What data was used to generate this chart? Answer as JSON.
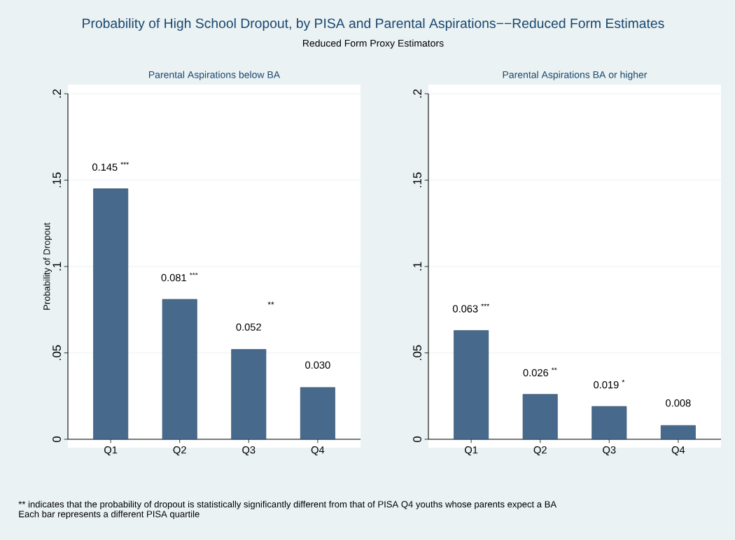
{
  "chart_data": [
    {
      "type": "other",
      "title": "Probability of High School Dropout, by PISA and Parental Aspirations−−Reduced Form Estimates",
      "subtitle": "Reduced Form Proxy Estimators",
      "annotations": [
        "** indicates that the probability of dropout is statistically significantly different from that of PISA Q4 youths whose parents expect a BA",
        "Each bar represents a different PISA quartile"
      ]
    },
    {
      "type": "bar",
      "title": "Parental Aspirations below BA",
      "ylabel": "Probability of Dropout",
      "categories": [
        "Q1",
        "Q2",
        "Q3",
        "Q4"
      ],
      "values": [
        0.145,
        0.081,
        0.052,
        0.03
      ],
      "value_labels": [
        "0.145 $^{***}$",
        "0.081 $^{***}$",
        "0.052",
        "0.030"
      ],
      "color": "#476a8c",
      "ylim": [
        0,
        0.2
      ],
      "yticks": [
        0,
        {
          "value": 0.05,
          "label": ".05"
        },
        {
          "value": 0.1,
          "label": ".1"
        },
        {
          "value": 0.15,
          "label": ".15"
        },
        {
          "value": 0.2,
          "label": ".2"
        }
      ],
      "grid": "y",
      "annotations": [
        "**"
      ]
    },
    {
      "type": "bar",
      "title": "Parental Aspirations BA or higher",
      "categories": [
        "Q1",
        "Q2",
        "Q3",
        "Q4"
      ],
      "values": [
        0.063,
        0.026,
        0.019,
        0.008
      ],
      "value_labels": [
        "0.063 $^{***}$",
        "0.026 $^{**}$",
        "0.019 $^{*}$",
        "0.008"
      ],
      "color": "#476a8c",
      "ylim": [
        0,
        0.2
      ],
      "yticks": [
        0,
        {
          "value": 0.05,
          "label": ".05"
        },
        {
          "value": 0.1,
          "label": ".1"
        },
        {
          "value": 0.15,
          "label": ".15"
        },
        {
          "value": 0.2,
          "label": ".2"
        }
      ],
      "grid": "y"
    }
  ]
}
